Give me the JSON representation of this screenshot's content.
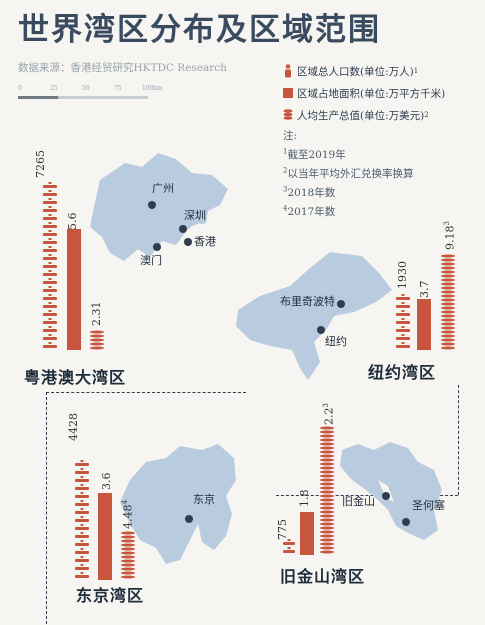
{
  "title": "世界湾区分布及区域范围",
  "source": "数据来源：香港经贸研究HKTDC Research",
  "scale_ticks": [
    "0",
    "25",
    "50",
    "75",
    "100km"
  ],
  "legend": {
    "population": "区域总人口数(单位:万人)",
    "population_note": "1",
    "area": "区域占地面积(单位:万平方千米)",
    "gdp": "人均生产总值(单位:万美元)",
    "gdp_note": "2"
  },
  "notes": {
    "heading": "注:",
    "items": [
      {
        "sup": "1",
        "text": "截至2019年"
      },
      {
        "sup": "2",
        "text": "以当年平均外汇兑换率换算"
      },
      {
        "sup": "3",
        "text": "2018年数"
      },
      {
        "sup": "4",
        "text": "2017年数"
      }
    ]
  },
  "colors": {
    "title": "#3a4b60",
    "land": "#b8cbdf",
    "bar": "#c8553d",
    "dark": "#2f3d4f"
  },
  "regions": [
    {
      "name": "粤港澳大湾区",
      "population": "7265",
      "area": "5.6",
      "gdp": "2.31",
      "gdp_sup": "",
      "cities": [
        "广州",
        "深圳",
        "澳门",
        "香港"
      ]
    },
    {
      "name": "纽约湾区",
      "population": "1930",
      "area": "3.7",
      "gdp": "9.18",
      "gdp_sup": "3",
      "cities": [
        "布里奇波特",
        "纽约"
      ]
    },
    {
      "name": "东京湾区",
      "population": "4428",
      "area": "3.6",
      "gdp": "4.48",
      "gdp_sup": "4",
      "cities": [
        "东京"
      ]
    },
    {
      "name": "旧金山湾区",
      "population": "775",
      "area": "1.8",
      "gdp": "12.2",
      "gdp_sup": "3",
      "cities": [
        "旧金山",
        "圣何塞"
      ]
    }
  ]
}
